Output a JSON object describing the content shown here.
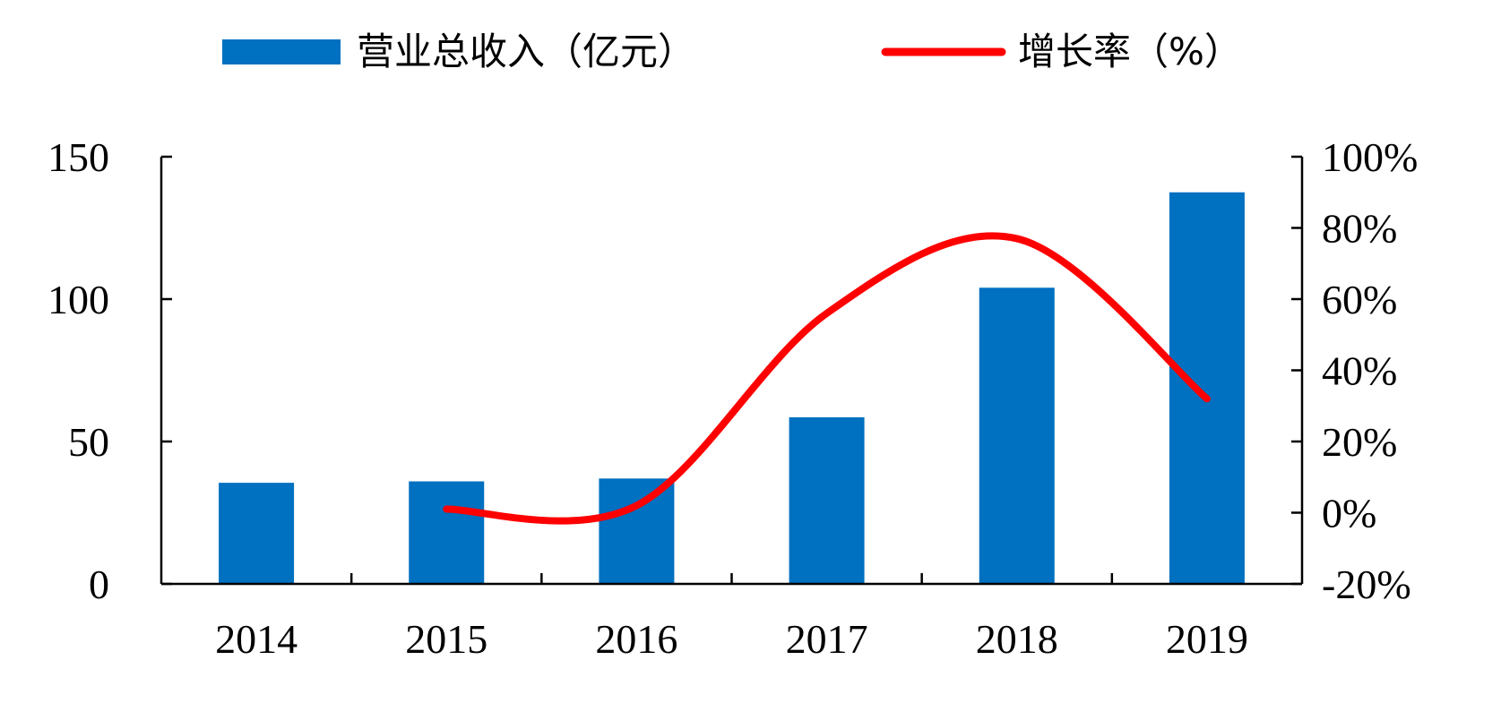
{
  "chart_data": {
    "type": "bar",
    "categories": [
      "2014",
      "2015",
      "2016",
      "2017",
      "2018",
      "2019"
    ],
    "series": [
      {
        "name": "营业总收入（亿元）",
        "type": "bar",
        "axis": "left",
        "color": "#0070C0",
        "values": [
          35.5,
          36,
          37,
          58.5,
          104,
          137.5
        ]
      },
      {
        "name": "增长率（%）",
        "type": "line",
        "axis": "right",
        "color": "#FF0000",
        "values": [
          null,
          1,
          2,
          56,
          77,
          32
        ]
      }
    ],
    "y_left": {
      "min": 0,
      "max": 150,
      "ticks": [
        0,
        50,
        100,
        150
      ],
      "tick_labels": [
        "0",
        "50",
        "100",
        "150"
      ]
    },
    "y_right": {
      "min": -20,
      "max": 100,
      "ticks": [
        -20,
        0,
        20,
        40,
        60,
        80,
        100
      ],
      "tick_labels": [
        "-20%",
        "0%",
        "20%",
        "40%",
        "60%",
        "80%",
        "100%"
      ]
    },
    "grid": false,
    "legend_position": "top-center"
  }
}
